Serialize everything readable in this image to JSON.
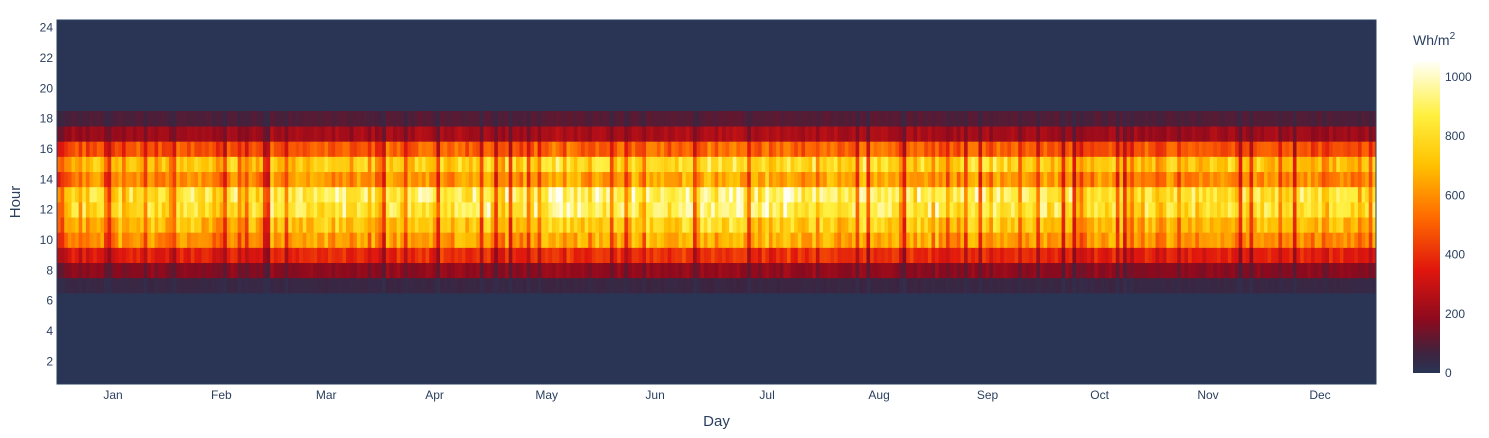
{
  "chart_data": {
    "type": "heatmap",
    "title": "",
    "xlabel": "Day",
    "ylabel": "Hour",
    "colorbar": {
      "title": "Wh/m",
      "title_superscript": "2",
      "range": [
        0,
        1050
      ],
      "ticks": [
        0,
        200,
        400,
        600,
        800,
        1000
      ],
      "colorscale": [
        [
          0.0,
          "#2a3555"
        ],
        [
          0.06,
          "#3c2440"
        ],
        [
          0.17,
          "#8b0a1e"
        ],
        [
          0.33,
          "#e0160e"
        ],
        [
          0.5,
          "#ff6a00"
        ],
        [
          0.67,
          "#ffc200"
        ],
        [
          0.83,
          "#fff040"
        ],
        [
          1.0,
          "#fffff6"
        ]
      ]
    },
    "x_ticks": [
      "Jan",
      "Feb",
      "Mar",
      "Apr",
      "May",
      "Jun",
      "Jul",
      "Aug",
      "Sep",
      "Oct",
      "Nov",
      "Dec"
    ],
    "x_tick_days": [
      16,
      46,
      75,
      105,
      136,
      166,
      197,
      228,
      258,
      289,
      319,
      350
    ],
    "x_range": [
      1,
      365
    ],
    "y_ticks": [
      2,
      4,
      6,
      8,
      10,
      12,
      14,
      16,
      18,
      20,
      22,
      24
    ],
    "y_range": [
      0.5,
      24.5
    ],
    "days": 365,
    "hours": 24,
    "hourly_profile": [
      {
        "hour": 1,
        "value": 0
      },
      {
        "hour": 2,
        "value": 0
      },
      {
        "hour": 3,
        "value": 0
      },
      {
        "hour": 4,
        "value": 0
      },
      {
        "hour": 5,
        "value": 0
      },
      {
        "hour": 6,
        "value": 0
      },
      {
        "hour": 7,
        "value": 60
      },
      {
        "hour": 8,
        "value": 210
      },
      {
        "hour": 9,
        "value": 430
      },
      {
        "hour": 10,
        "value": 720
      },
      {
        "hour": 11,
        "value": 820
      },
      {
        "hour": 12,
        "value": 960
      },
      {
        "hour": 13,
        "value": 980
      },
      {
        "hour": 14,
        "value": 700
      },
      {
        "hour": 15,
        "value": 860
      },
      {
        "hour": 16,
        "value": 560
      },
      {
        "hour": 17,
        "value": 260
      },
      {
        "hour": 18,
        "value": 110
      },
      {
        "hour": 19,
        "value": 0
      },
      {
        "hour": 20,
        "value": 0
      },
      {
        "hour": 21,
        "value": 0
      },
      {
        "hour": 22,
        "value": 0
      },
      {
        "hour": 23,
        "value": 0
      },
      {
        "hour": 24,
        "value": 0
      }
    ]
  }
}
